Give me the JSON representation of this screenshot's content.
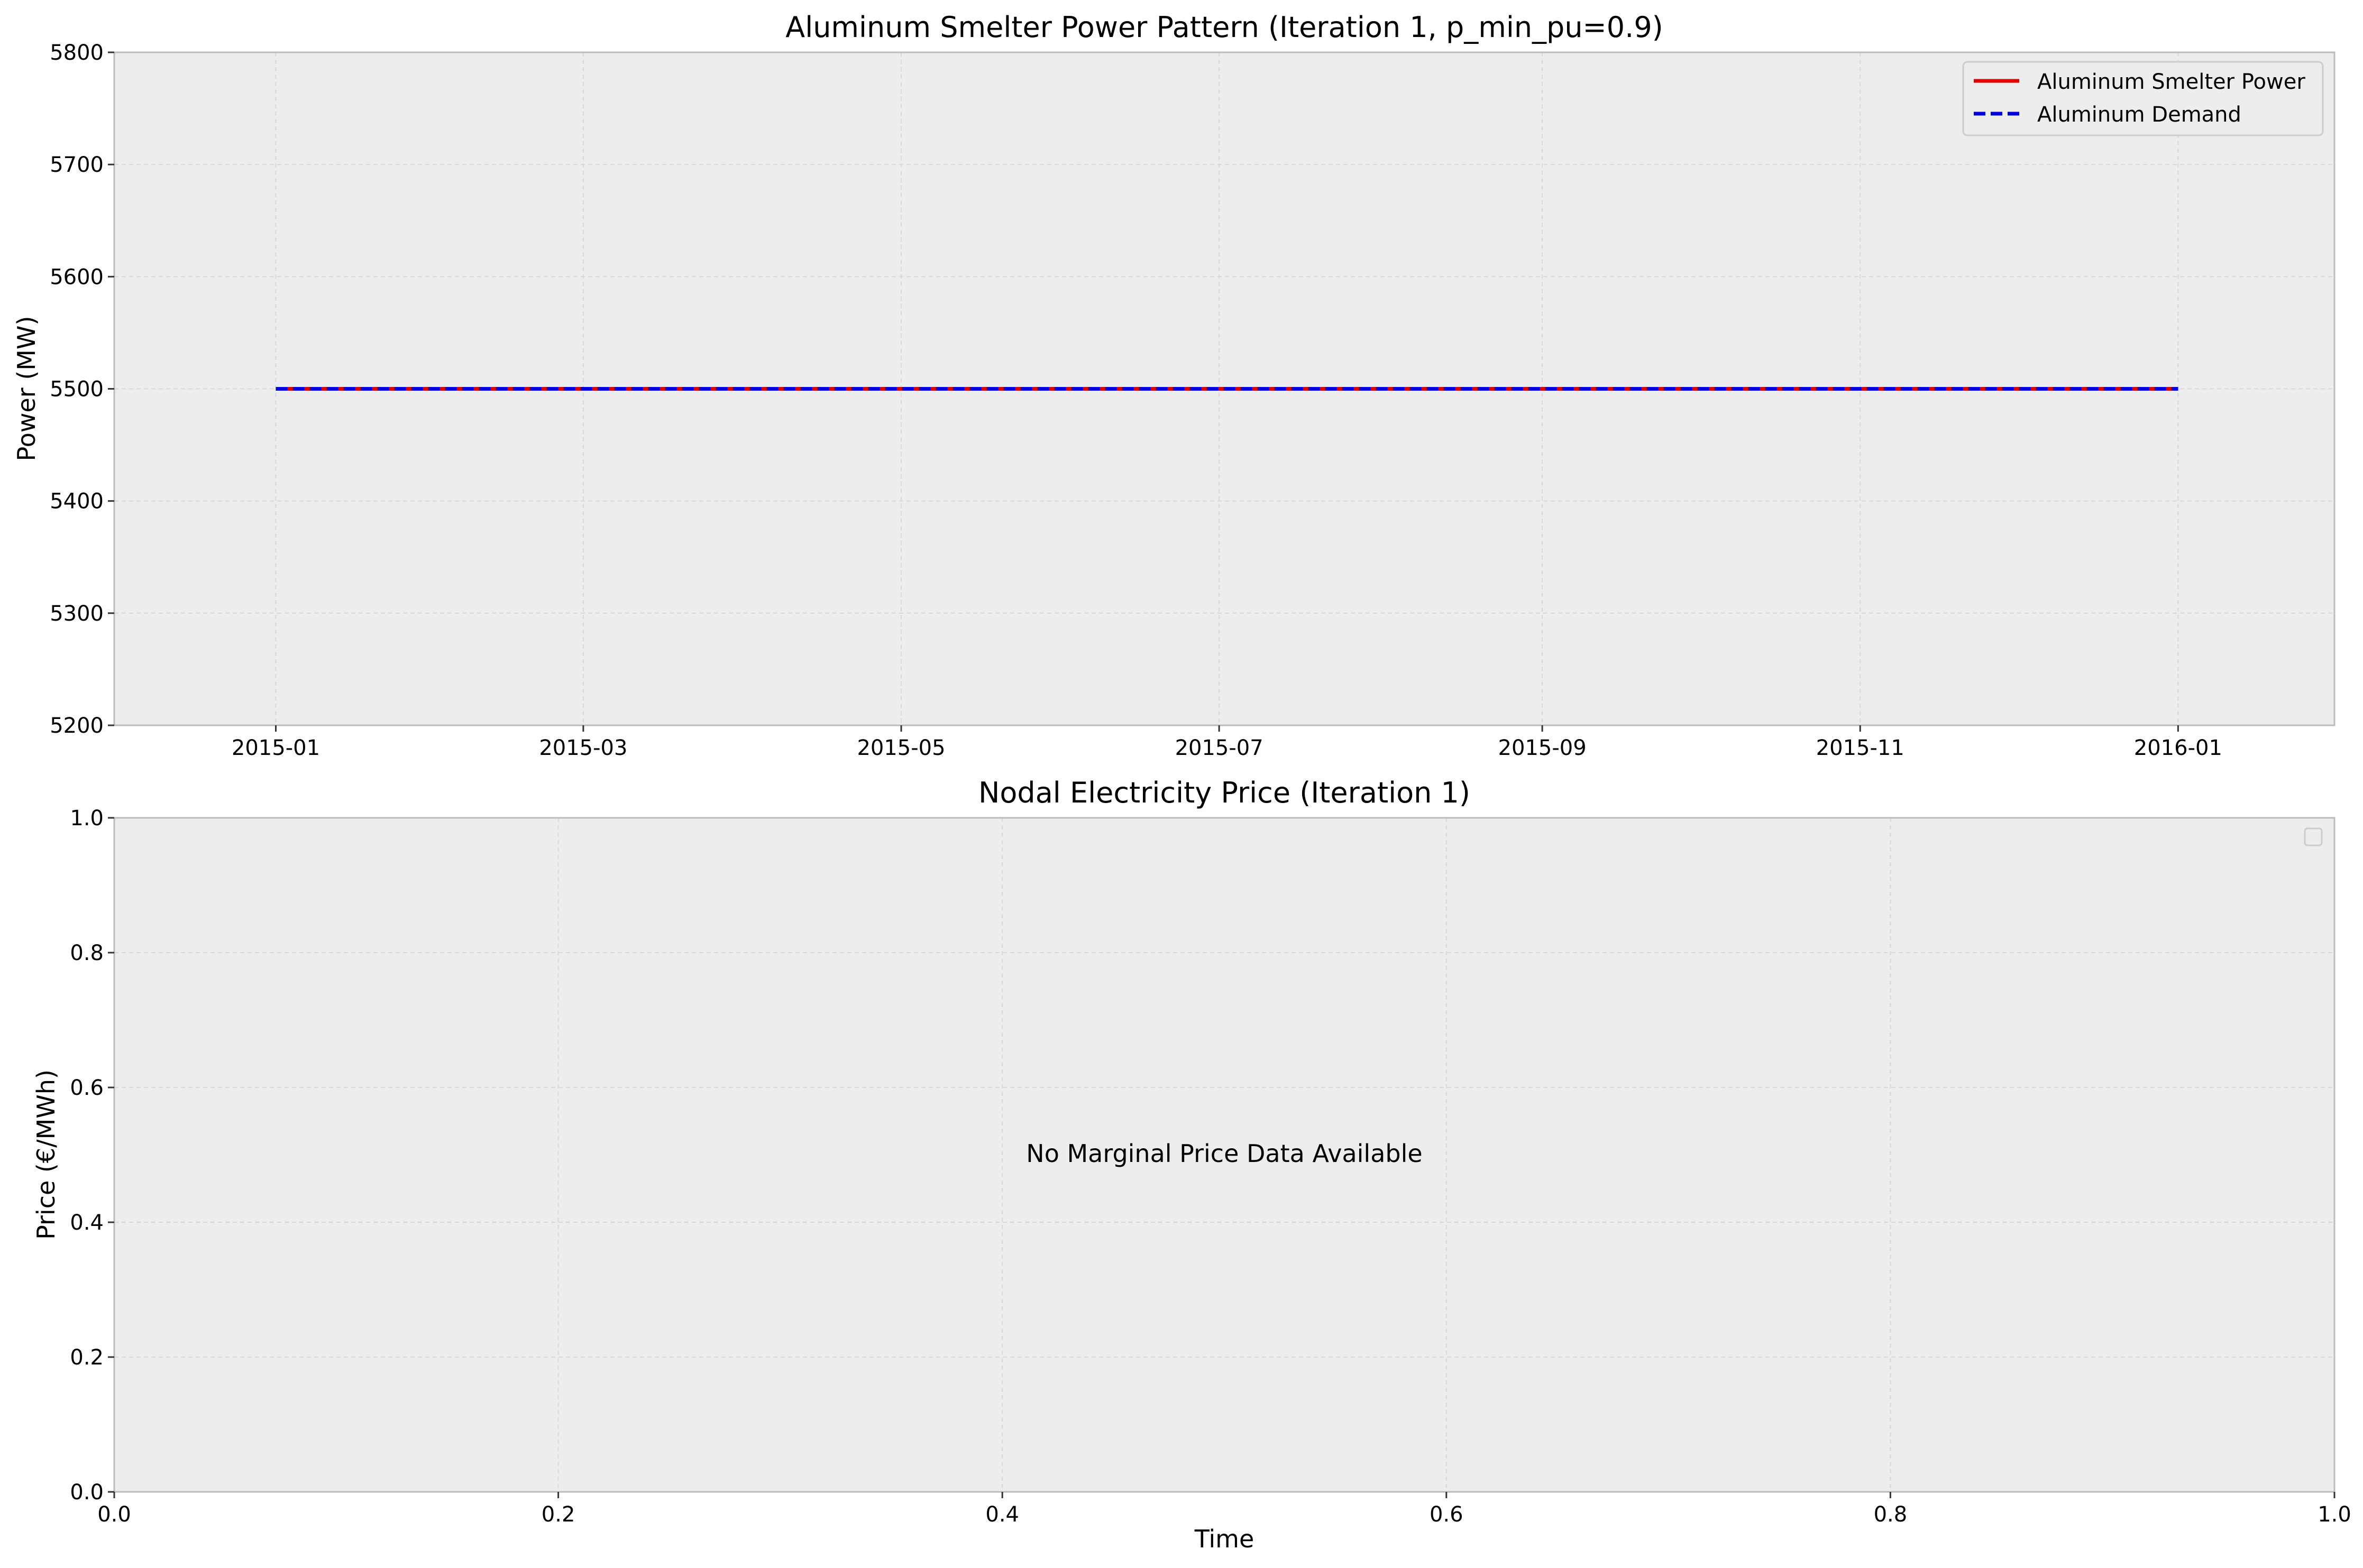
{
  "colors": {
    "figure_background": "#ffffff",
    "axes_background": "#ededed",
    "grid": "#d9d9d9",
    "spine": "#bcbcbc",
    "series_power": "#e00000",
    "series_demand": "#0000e0"
  },
  "chart_data": [
    {
      "type": "line",
      "title": "Aluminum Smelter Power Pattern (Iteration 1, p_min_pu=0.9)",
      "xlabel": "",
      "ylabel": "Power (MW)",
      "x_is_date": true,
      "xlim": [
        "2014-12-01",
        "2016-01-31"
      ],
      "ylim": [
        5200,
        5800
      ],
      "xticks": [
        "2015-01",
        "2015-03",
        "2015-05",
        "2015-07",
        "2015-09",
        "2015-11",
        "2016-01"
      ],
      "xtick_dates": [
        "2015-01-01",
        "2015-03-01",
        "2015-05-01",
        "2015-07-01",
        "2015-09-01",
        "2015-11-01",
        "2016-01-01"
      ],
      "yticks": [
        "5200",
        "5300",
        "5400",
        "5500",
        "5600",
        "5700",
        "5800"
      ],
      "grid": true,
      "legend_position": "top-right",
      "series": [
        {
          "name": "Aluminum Smelter Power",
          "style": "solid",
          "color": "#e00000",
          "x": [
            "2015-01-01",
            "2016-01-01"
          ],
          "y": [
            5500,
            5500
          ]
        },
        {
          "name": "Aluminum Demand",
          "style": "dashed",
          "color": "#0000e0",
          "x": [
            "2015-01-01",
            "2016-01-01"
          ],
          "y": [
            5500,
            5500
          ]
        }
      ]
    },
    {
      "type": "line",
      "title": "Nodal Electricity Price (Iteration 1)",
      "xlabel": "Time",
      "ylabel": "Price (€/MWh)",
      "xlim": [
        0,
        1
      ],
      "ylim": [
        0,
        1
      ],
      "xticks": [
        "0.0",
        "0.2",
        "0.4",
        "0.6",
        "0.8",
        "1.0"
      ],
      "yticks": [
        "0.0",
        "0.2",
        "0.4",
        "0.6",
        "0.8",
        "1.0"
      ],
      "grid": true,
      "legend_position": "top-right",
      "annotation": "No Marginal Price Data Available",
      "series": []
    }
  ]
}
